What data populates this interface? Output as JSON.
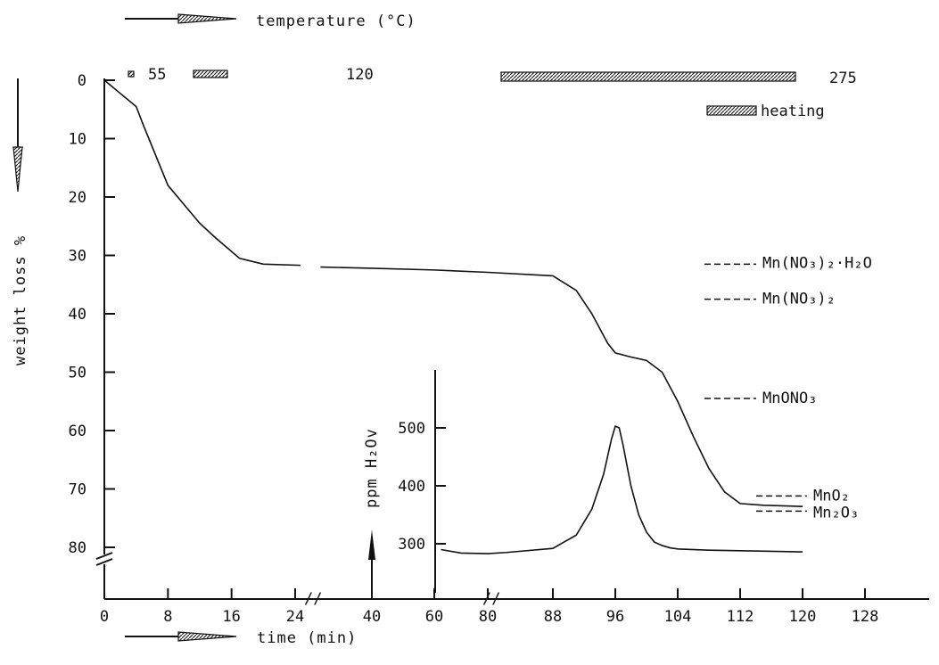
{
  "chart_data": {
    "type": "line",
    "top_arrow_label": "temperature (°C)",
    "xlabel": "time  (min)",
    "ylabel": "weight  loss  %",
    "inset_ylabel": "ppm H₂Ov",
    "x_ticks": [
      "0",
      "8",
      "16",
      "24",
      "40",
      "60",
      "80",
      "88",
      "96",
      "104",
      "112",
      "120",
      "128"
    ],
    "y_ticks": [
      "0",
      "10",
      "20",
      "30",
      "40",
      "50",
      "60",
      "70",
      "80"
    ],
    "inset_y_ticks": [
      "300",
      "400",
      "500"
    ],
    "ylim": [
      0,
      85
    ],
    "inset_ylim": [
      270,
      600
    ],
    "temperature_labels": [
      "55",
      "120",
      "275"
    ],
    "heating_legend": "heating",
    "series": [
      {
        "x": [
          0,
          4,
          5,
          8,
          12,
          14,
          17,
          20,
          24.5,
          27,
          40,
          60,
          80,
          88,
          91,
          93,
          95,
          96,
          98,
          100,
          102,
          104,
          106,
          108,
          110,
          112,
          115,
          120
        ],
        "values": [
          0,
          4.5,
          8,
          18,
          24.5,
          27,
          30.5,
          31.5,
          31.7,
          32,
          32.2,
          32.5,
          32.9,
          33.5,
          36,
          40,
          45,
          46.7,
          47.4,
          48,
          50,
          55,
          61,
          66.5,
          70.5,
          72.5,
          72.8,
          73
        ]
      },
      {
        "x": [
          62.5,
          70,
          80,
          84,
          88,
          91,
          93,
          94.5,
          95.5,
          96,
          96.5,
          97,
          98,
          99,
          100,
          101,
          102,
          103,
          104,
          108,
          112,
          116,
          120
        ],
        "values": [
          290,
          284,
          283,
          285,
          292,
          315,
          360,
          420,
          480,
          503,
          500,
          470,
          400,
          350,
          320,
          303,
          297,
          293,
          291,
          289,
          288,
          287,
          286
        ]
      }
    ],
    "reference_levels": [
      {
        "label": "Mn(NO₃)₂·H₂O",
        "y": 31.5
      },
      {
        "label": "Mn(NO₃)₂",
        "y": 37.5
      },
      {
        "label": "MnONO₃",
        "y": 54.5
      },
      {
        "label": "MnO₂",
        "y": 71.2
      },
      {
        "label": "Mn₂O₃",
        "y": 73.8
      }
    ]
  }
}
